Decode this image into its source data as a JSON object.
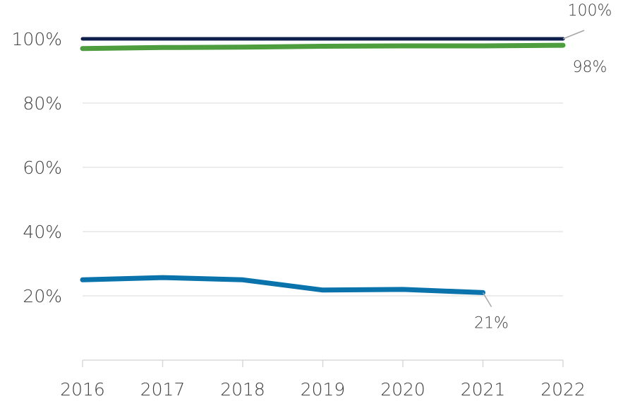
{
  "chart_data": {
    "type": "line",
    "title": "",
    "xlabel": "",
    "ylabel": "",
    "x": [
      "2016",
      "2017",
      "2018",
      "2019",
      "2020",
      "2021",
      "2022"
    ],
    "ylim": [
      0,
      100
    ],
    "yticks": [
      20,
      40,
      60,
      80,
      100
    ],
    "ytick_labels": [
      "20%",
      "40%",
      "60%",
      "80%",
      "100%"
    ],
    "grid": true,
    "legend": "none",
    "series": [
      {
        "color": "#0f1f4d",
        "values": [
          100,
          100,
          100,
          100,
          100,
          100,
          100
        ]
      },
      {
        "color": "#4e9e3f",
        "values": [
          97,
          97.3,
          97.4,
          97.7,
          97.8,
          97.8,
          98
        ]
      },
      {
        "color": "#0a73ab",
        "values": [
          25,
          25.7,
          25,
          21.8,
          22,
          21,
          null
        ]
      }
    ],
    "annotations": [
      {
        "series": 0,
        "x": "2022",
        "text": "100%"
      },
      {
        "series": 1,
        "x": "2022",
        "text": "98%"
      },
      {
        "series": 2,
        "x": "2021",
        "text": "21%"
      }
    ]
  }
}
